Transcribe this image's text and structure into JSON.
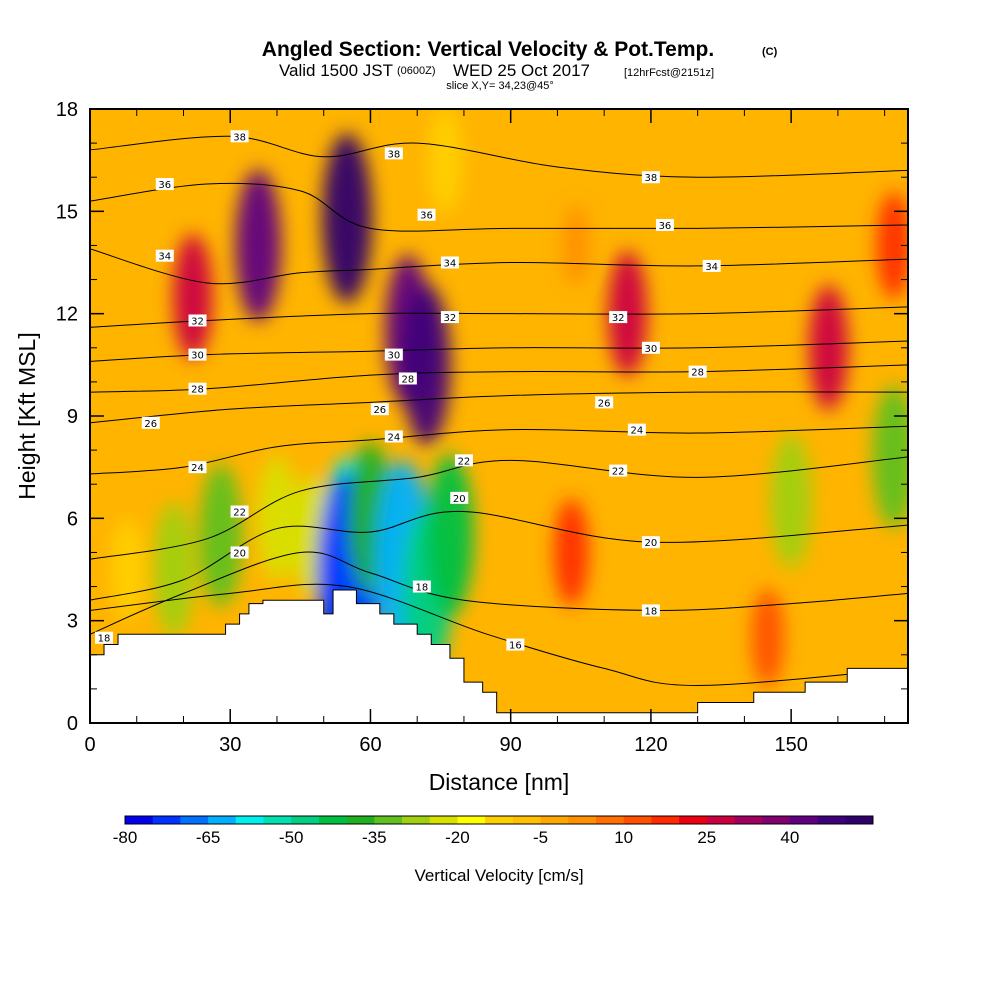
{
  "title": "Angled Section: Vertical Velocity & Pot.Temp.",
  "title_units": "(C)",
  "subtitle_prefix": "Valid 1500 JST",
  "subtitle_utc": "(0600Z)",
  "subtitle_date": "WED 25 Oct 2017",
  "subtitle_fcst": "[12hrFcst@2151z]",
  "slice_info": "slice X,Y= 34,23@45°",
  "chart_data": {
    "type": "heatmap",
    "title": "Angled Section: Vertical Velocity & Pot.Temp. (C)",
    "xlabel": "Distance [nm]",
    "ylabel": "Height [Kft MSL]",
    "x_range": [
      0,
      175
    ],
    "y_range": [
      0,
      18
    ],
    "x_ticks": [
      0,
      30,
      60,
      90,
      120,
      150
    ],
    "y_ticks": [
      0,
      3,
      6,
      9,
      12,
      15,
      18
    ],
    "x_tick_labels": [
      "0",
      "30",
      "60",
      "90",
      "120",
      "150"
    ],
    "y_tick_labels": [
      "0",
      "3",
      "6",
      "9",
      "12",
      "15",
      "18"
    ],
    "colorbar": {
      "label": "Vertical Velocity [cm/s]",
      "min": -80,
      "max": 55,
      "step": 5,
      "tick_values": [
        -80,
        -65,
        -50,
        -35,
        -20,
        -5,
        10,
        25,
        40
      ],
      "tick_labels": [
        "-80",
        "-65",
        "-50",
        "-35",
        "-20",
        "-5",
        "10",
        "25",
        "40"
      ],
      "colors": [
        "#0000ee",
        "#0033ff",
        "#0070ff",
        "#00b0ff",
        "#00f0f0",
        "#00e0b0",
        "#00d080",
        "#00c040",
        "#20b020",
        "#60c020",
        "#a0d010",
        "#d8e000",
        "#ffff00",
        "#ffd000",
        "#ffc000",
        "#ffa800",
        "#ff9000",
        "#ff7000",
        "#ff5000",
        "#ff2a00",
        "#ee0010",
        "#cc0040",
        "#a00060",
        "#800070",
        "#600080",
        "#40007a",
        "#30006a"
      ]
    },
    "velocity_cells": [
      {
        "x": 8,
        "y": 4.5,
        "value": -12
      },
      {
        "x": 18,
        "y": 4.5,
        "value": -30
      },
      {
        "x": 28,
        "y": 5.5,
        "value": -35
      },
      {
        "x": 40,
        "y": 6.0,
        "value": -25
      },
      {
        "x": 47,
        "y": 5.5,
        "value": -22
      },
      {
        "x": 55,
        "y": 5.0,
        "value": -60
      },
      {
        "x": 55,
        "y": 4.2,
        "value": -75
      },
      {
        "x": 60,
        "y": 6.0,
        "value": -40
      },
      {
        "x": 67,
        "y": 4.8,
        "value": -65
      },
      {
        "x": 72,
        "y": 3.8,
        "value": -50
      },
      {
        "x": 77,
        "y": 5.5,
        "value": -45
      },
      {
        "x": 150,
        "y": 6.5,
        "value": -30
      },
      {
        "x": 172,
        "y": 7.8,
        "value": -35
      },
      {
        "x": 22,
        "y": 12.5,
        "value": 25
      },
      {
        "x": 36,
        "y": 14.0,
        "value": 40
      },
      {
        "x": 55,
        "y": 14.8,
        "value": 50
      },
      {
        "x": 68,
        "y": 11.5,
        "value": 40
      },
      {
        "x": 72,
        "y": 10.5,
        "value": 45
      },
      {
        "x": 115,
        "y": 12.0,
        "value": 25
      },
      {
        "x": 158,
        "y": 11.0,
        "value": 25
      },
      {
        "x": 172,
        "y": 14.0,
        "value": 15
      },
      {
        "x": 103,
        "y": 5.0,
        "value": 15
      },
      {
        "x": 145,
        "y": 2.5,
        "value": 10
      },
      {
        "x": 76,
        "y": 16.5,
        "value": -15
      },
      {
        "x": 104,
        "y": 14.0,
        "value": 0
      }
    ],
    "terrain": {
      "x": [
        0,
        3,
        3,
        6,
        6,
        29,
        29,
        32,
        32,
        34,
        34,
        37,
        37,
        50,
        50,
        52,
        52,
        57,
        57,
        62,
        62,
        65,
        65,
        70,
        70,
        73,
        73,
        77,
        77,
        80,
        80,
        84,
        84,
        87,
        87,
        130,
        130,
        142,
        142,
        153,
        153,
        162,
        162,
        175
      ],
      "height": [
        2.0,
        2.0,
        2.3,
        2.3,
        2.6,
        2.6,
        2.9,
        2.9,
        3.2,
        3.2,
        3.5,
        3.5,
        3.6,
        3.6,
        3.2,
        3.2,
        3.9,
        3.9,
        3.5,
        3.5,
        3.2,
        3.2,
        2.9,
        2.9,
        2.6,
        2.6,
        2.3,
        2.3,
        1.9,
        1.9,
        1.2,
        1.2,
        0.9,
        0.9,
        0.3,
        0.3,
        0.6,
        0.6,
        0.9,
        0.9,
        1.2,
        1.2,
        1.6,
        1.6
      ]
    },
    "isentropes": [
      {
        "value": 16,
        "points": [
          [
            0,
            3.3
          ],
          [
            30,
            3.8
          ],
          [
            55,
            4.0
          ],
          [
            85,
            2.6
          ],
          [
            110,
            1.6
          ],
          [
            130,
            1.1
          ],
          [
            175,
            1.6
          ]
        ]
      },
      {
        "value": 18,
        "points": [
          [
            0,
            2.6
          ],
          [
            20,
            3.8
          ],
          [
            45,
            5.0
          ],
          [
            60,
            4.4
          ],
          [
            80,
            3.6
          ],
          [
            120,
            3.3
          ],
          [
            150,
            3.5
          ],
          [
            175,
            3.8
          ]
        ]
      },
      {
        "value": 20,
        "points": [
          [
            0,
            3.6
          ],
          [
            20,
            4.2
          ],
          [
            40,
            5.7
          ],
          [
            60,
            5.6
          ],
          [
            80,
            6.2
          ],
          [
            120,
            5.3
          ],
          [
            175,
            5.8
          ]
        ]
      },
      {
        "value": 22,
        "points": [
          [
            0,
            4.8
          ],
          [
            25,
            5.4
          ],
          [
            45,
            6.8
          ],
          [
            70,
            7.2
          ],
          [
            90,
            7.7
          ],
          [
            130,
            7.2
          ],
          [
            175,
            7.8
          ]
        ]
      },
      {
        "value": 24,
        "points": [
          [
            0,
            7.3
          ],
          [
            20,
            7.5
          ],
          [
            40,
            8.1
          ],
          [
            60,
            8.3
          ],
          [
            90,
            8.6
          ],
          [
            130,
            8.5
          ],
          [
            175,
            8.7
          ]
        ]
      },
      {
        "value": 26,
        "points": [
          [
            0,
            8.8
          ],
          [
            30,
            9.2
          ],
          [
            60,
            9.4
          ],
          [
            90,
            9.6
          ],
          [
            130,
            9.7
          ],
          [
            175,
            9.7
          ]
        ]
      },
      {
        "value": 28,
        "points": [
          [
            0,
            9.7
          ],
          [
            25,
            9.8
          ],
          [
            60,
            10.2
          ],
          [
            90,
            10.3
          ],
          [
            130,
            10.3
          ],
          [
            175,
            10.5
          ]
        ]
      },
      {
        "value": 30,
        "points": [
          [
            0,
            10.6
          ],
          [
            25,
            10.8
          ],
          [
            60,
            10.9
          ],
          [
            90,
            11.0
          ],
          [
            130,
            11.0
          ],
          [
            175,
            11.2
          ]
        ]
      },
      {
        "value": 32,
        "points": [
          [
            0,
            11.6
          ],
          [
            25,
            11.8
          ],
          [
            60,
            12.0
          ],
          [
            90,
            12.0
          ],
          [
            130,
            12.0
          ],
          [
            175,
            12.2
          ]
        ]
      },
      {
        "value": 34,
        "points": [
          [
            0,
            13.9
          ],
          [
            25,
            12.9
          ],
          [
            45,
            13.2
          ],
          [
            60,
            13.3
          ],
          [
            90,
            13.5
          ],
          [
            130,
            13.4
          ],
          [
            175,
            13.6
          ]
        ]
      },
      {
        "value": 36,
        "points": [
          [
            0,
            15.3
          ],
          [
            25,
            15.8
          ],
          [
            45,
            15.6
          ],
          [
            60,
            14.5
          ],
          [
            90,
            14.5
          ],
          [
            130,
            14.5
          ],
          [
            175,
            14.6
          ]
        ]
      },
      {
        "value": 38,
        "points": [
          [
            0,
            16.8
          ],
          [
            30,
            17.2
          ],
          [
            50,
            16.6
          ],
          [
            70,
            17.0
          ],
          [
            100,
            16.3
          ],
          [
            130,
            16.0
          ],
          [
            175,
            16.2
          ]
        ]
      }
    ],
    "contour_labels": [
      {
        "text": "38",
        "x": 32,
        "y": 17.2
      },
      {
        "text": "38",
        "x": 65,
        "y": 16.7
      },
      {
        "text": "38",
        "x": 120,
        "y": 16.0
      },
      {
        "text": "36",
        "x": 16,
        "y": 15.8
      },
      {
        "text": "36",
        "x": 72,
        "y": 14.9
      },
      {
        "text": "36",
        "x": 123,
        "y": 14.6
      },
      {
        "text": "34",
        "x": 16,
        "y": 13.7
      },
      {
        "text": "34",
        "x": 77,
        "y": 13.5
      },
      {
        "text": "34",
        "x": 133,
        "y": 13.4
      },
      {
        "text": "32",
        "x": 23,
        "y": 11.8
      },
      {
        "text": "32",
        "x": 77,
        "y": 11.9
      },
      {
        "text": "32",
        "x": 113,
        "y": 11.9
      },
      {
        "text": "30",
        "x": 23,
        "y": 10.8
      },
      {
        "text": "30",
        "x": 65,
        "y": 10.8
      },
      {
        "text": "30",
        "x": 120,
        "y": 11.0
      },
      {
        "text": "28",
        "x": 23,
        "y": 9.8
      },
      {
        "text": "28",
        "x": 68,
        "y": 10.1
      },
      {
        "text": "28",
        "x": 130,
        "y": 10.3
      },
      {
        "text": "26",
        "x": 13,
        "y": 8.8
      },
      {
        "text": "26",
        "x": 62,
        "y": 9.2
      },
      {
        "text": "26",
        "x": 110,
        "y": 9.4
      },
      {
        "text": "24",
        "x": 23,
        "y": 7.5
      },
      {
        "text": "24",
        "x": 65,
        "y": 8.4
      },
      {
        "text": "24",
        "x": 117,
        "y": 8.6
      },
      {
        "text": "22",
        "x": 32,
        "y": 6.2
      },
      {
        "text": "22",
        "x": 80,
        "y": 7.7
      },
      {
        "text": "22",
        "x": 113,
        "y": 7.4
      },
      {
        "text": "20",
        "x": 32,
        "y": 5.0
      },
      {
        "text": "20",
        "x": 79,
        "y": 6.6
      },
      {
        "text": "20",
        "x": 120,
        "y": 5.3
      },
      {
        "text": "18",
        "x": 3,
        "y": 2.5
      },
      {
        "text": "18",
        "x": 71,
        "y": 4.0
      },
      {
        "text": "18",
        "x": 120,
        "y": 3.3
      },
      {
        "text": "16",
        "x": 91,
        "y": 2.3
      }
    ]
  }
}
